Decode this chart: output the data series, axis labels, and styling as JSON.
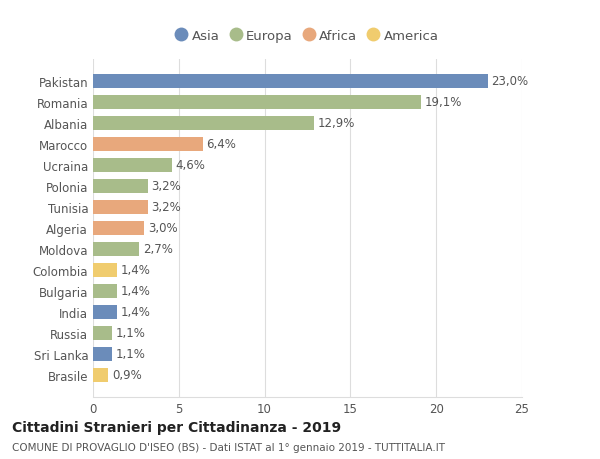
{
  "countries": [
    "Pakistan",
    "Romania",
    "Albania",
    "Marocco",
    "Ucraina",
    "Polonia",
    "Tunisia",
    "Algeria",
    "Moldova",
    "Colombia",
    "Bulgaria",
    "India",
    "Russia",
    "Sri Lanka",
    "Brasile"
  ],
  "values": [
    23.0,
    19.1,
    12.9,
    6.4,
    4.6,
    3.2,
    3.2,
    3.0,
    2.7,
    1.4,
    1.4,
    1.4,
    1.1,
    1.1,
    0.9
  ],
  "labels": [
    "23,0%",
    "19,1%",
    "12,9%",
    "6,4%",
    "4,6%",
    "3,2%",
    "3,2%",
    "3,0%",
    "2,7%",
    "1,4%",
    "1,4%",
    "1,4%",
    "1,1%",
    "1,1%",
    "0,9%"
  ],
  "continents": [
    "Asia",
    "Europa",
    "Europa",
    "Africa",
    "Europa",
    "Europa",
    "Africa",
    "Africa",
    "Europa",
    "America",
    "Europa",
    "Asia",
    "Europa",
    "Asia",
    "America"
  ],
  "colors": {
    "Asia": "#6b8cba",
    "Europa": "#a8bc8a",
    "Africa": "#e8a87c",
    "America": "#f0cc6e"
  },
  "legend_order": [
    "Asia",
    "Europa",
    "Africa",
    "America"
  ],
  "title1": "Cittadini Stranieri per Cittadinanza - 2019",
  "title2": "COMUNE DI PROVAGLIO D'ISEO (BS) - Dati ISTAT al 1° gennaio 2019 - TUTTITALIA.IT",
  "xlim": [
    0,
    25
  ],
  "xticks": [
    0,
    5,
    10,
    15,
    20,
    25
  ],
  "background_color": "#ffffff",
  "grid_color": "#dddddd",
  "bar_height": 0.65,
  "label_fontsize": 8.5,
  "tick_fontsize": 8.5,
  "legend_fontsize": 9.5,
  "title1_fontsize": 10,
  "title2_fontsize": 7.5,
  "text_color": "#555555",
  "title_color": "#222222"
}
